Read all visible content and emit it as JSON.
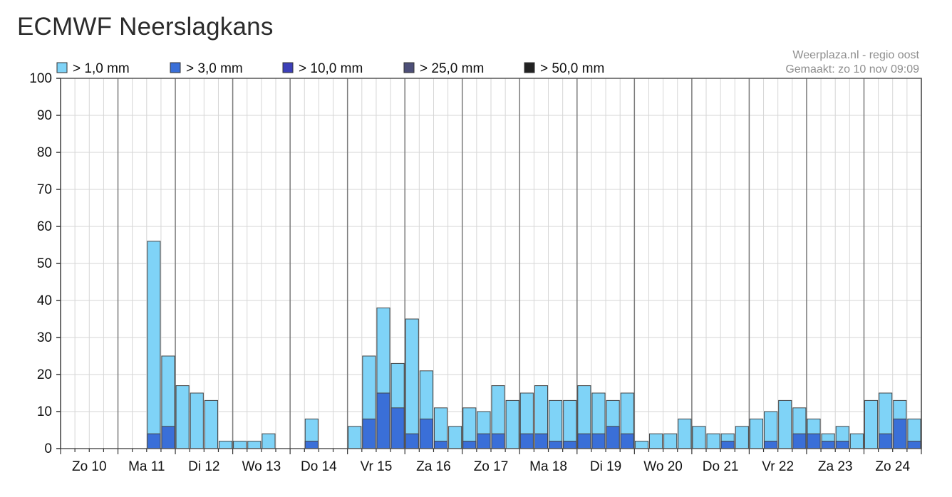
{
  "title": "ECMWF Neerslagkans",
  "credit": {
    "line1": "Weerplaza.nl - regio oost",
    "line2": "Gemaakt: zo 10 nov 09:09"
  },
  "chart_data": {
    "type": "bar",
    "stacked": true,
    "ylim": [
      0,
      100
    ],
    "yticks": [
      0,
      10,
      20,
      30,
      40,
      50,
      60,
      70,
      80,
      90,
      100
    ],
    "grid": true,
    "legend_position": "top",
    "bins_per_day": 4,
    "day_labels": [
      "Zo 10",
      "Ma 11",
      "Di 12",
      "Wo 13",
      "Do 14",
      "Vr 15",
      "Za 16",
      "Zo 17",
      "Ma 18",
      "Di 19",
      "Wo 20",
      "Do 21",
      "Vr 22",
      "Za 23",
      "Zo 24"
    ],
    "series": [
      {
        "name": "> 1,0 mm",
        "color": "#7fd3f7",
        "values": [
          0,
          0,
          0,
          0,
          0,
          0,
          56,
          25,
          17,
          15,
          13,
          2,
          2,
          2,
          4,
          0,
          0,
          8,
          0,
          0,
          6,
          25,
          38,
          23,
          35,
          21,
          11,
          6,
          11,
          10,
          17,
          13,
          15,
          17,
          13,
          13,
          17,
          15,
          13,
          15,
          2,
          4,
          4,
          8,
          6,
          4,
          4,
          6,
          8,
          10,
          13,
          11,
          8,
          4,
          6,
          4,
          13,
          15,
          13,
          8
        ]
      },
      {
        "name": "> 3,0 mm",
        "color": "#3a6fd8",
        "values": [
          0,
          0,
          0,
          0,
          0,
          0,
          4,
          6,
          0,
          0,
          0,
          0,
          0,
          0,
          0,
          0,
          0,
          2,
          0,
          0,
          0,
          8,
          15,
          11,
          4,
          8,
          2,
          0,
          2,
          4,
          4,
          0,
          4,
          4,
          2,
          2,
          4,
          4,
          6,
          4,
          0,
          0,
          0,
          0,
          0,
          0,
          2,
          0,
          0,
          2,
          0,
          4,
          4,
          2,
          2,
          0,
          0,
          4,
          8,
          2
        ]
      },
      {
        "name": "> 10,0 mm",
        "color": "#3c3fb8",
        "values": [
          0,
          0,
          0,
          0,
          0,
          0,
          0,
          0,
          0,
          0,
          0,
          0,
          0,
          0,
          0,
          0,
          0,
          0,
          0,
          0,
          0,
          0,
          0,
          0,
          0,
          0,
          0,
          0,
          0,
          0,
          0,
          0,
          0,
          0,
          0,
          0,
          0,
          0,
          0,
          0,
          0,
          0,
          0,
          0,
          0,
          0,
          0,
          0,
          0,
          0,
          0,
          0,
          0,
          0,
          0,
          0,
          0,
          0,
          0,
          0
        ]
      },
      {
        "name": "> 25,0 mm",
        "color": "#4d4f78",
        "values": [
          0,
          0,
          0,
          0,
          0,
          0,
          0,
          0,
          0,
          0,
          0,
          0,
          0,
          0,
          0,
          0,
          0,
          0,
          0,
          0,
          0,
          0,
          0,
          0,
          0,
          0,
          0,
          0,
          0,
          0,
          0,
          0,
          0,
          0,
          0,
          0,
          0,
          0,
          0,
          0,
          0,
          0,
          0,
          0,
          0,
          0,
          0,
          0,
          0,
          0,
          0,
          0,
          0,
          0,
          0,
          0,
          0,
          0,
          0,
          0
        ]
      },
      {
        "name": "> 50,0 mm",
        "color": "#222222",
        "values": [
          0,
          0,
          0,
          0,
          0,
          0,
          0,
          0,
          0,
          0,
          0,
          0,
          0,
          0,
          0,
          0,
          0,
          0,
          0,
          0,
          0,
          0,
          0,
          0,
          0,
          0,
          0,
          0,
          0,
          0,
          0,
          0,
          0,
          0,
          0,
          0,
          0,
          0,
          0,
          0,
          0,
          0,
          0,
          0,
          0,
          0,
          0,
          0,
          0,
          0,
          0,
          0,
          0,
          0,
          0,
          0,
          0,
          0,
          0,
          0
        ]
      }
    ]
  }
}
